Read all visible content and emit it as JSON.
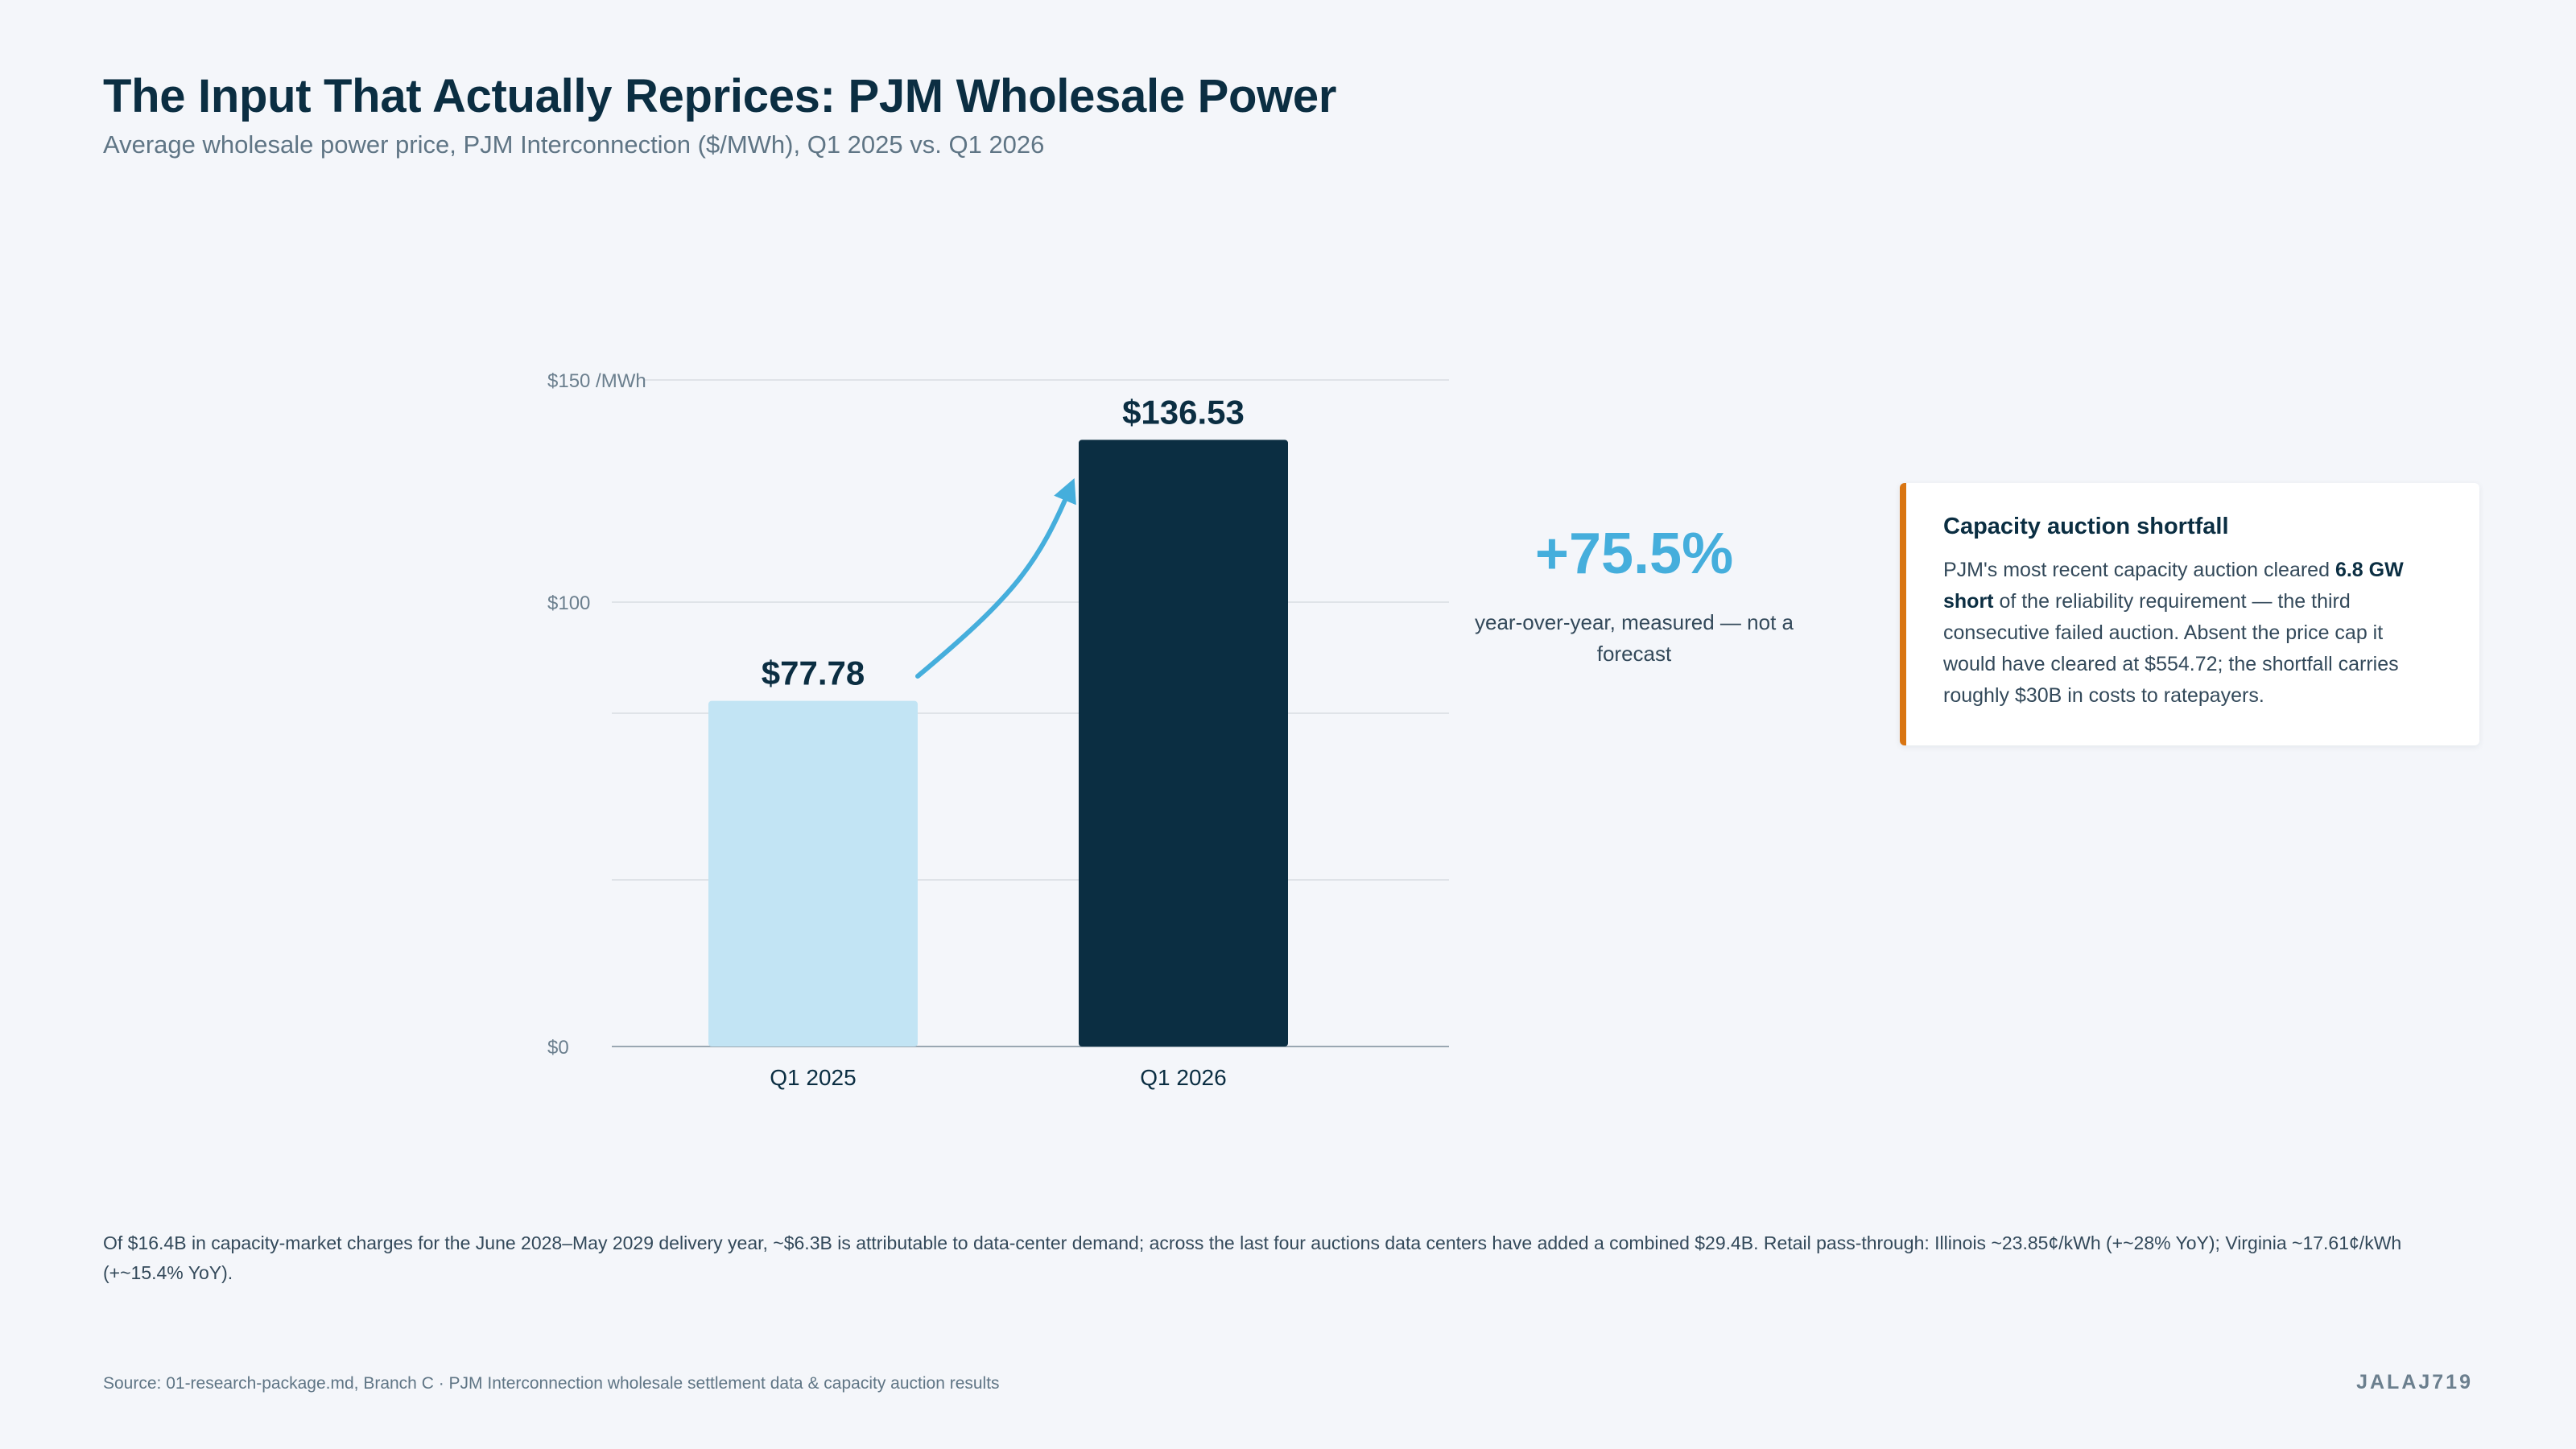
{
  "title": "The Input That Actually Reprices: PJM Wholesale Power",
  "subtitle": "Average wholesale power price, PJM Interconnection ($/MWh), Q1 2025 vs. Q1 2026",
  "colors": {
    "bar_2025": "#c2e4f4",
    "bar_2026": "#0b2e42",
    "arrow": "#45aedc",
    "accent_orange": "#d97512",
    "grid": "#dfe3e8",
    "axis_text": "#6b7f8e"
  },
  "chart_data": {
    "type": "bar",
    "categories": [
      "Q1 2025",
      "Q1 2026"
    ],
    "values": [
      77.78,
      136.53
    ],
    "value_labels": [
      "$77.78",
      "$136.53"
    ],
    "ylim": [
      0,
      150
    ],
    "yticks": [
      {
        "value": 0,
        "label": "$0"
      },
      {
        "value": 100,
        "label": "$100"
      },
      {
        "value": 150,
        "label": "$150 /MWh"
      }
    ],
    "gridlines": [
      37.5,
      75,
      100,
      150
    ],
    "grid": true
  },
  "callout": {
    "value": "+75.5%",
    "label": "year-over-year, measured — not a forecast"
  },
  "card": {
    "title": "Capacity auction shortfall",
    "body_before": "PJM's most recent capacity auction cleared ",
    "body_bold": "6.8 GW short",
    "body_after": " of the reliability requirement — the third consecutive failed auction. Absent the price cap it would have cleared at $554.72; the shortfall carries roughly $30B in costs to ratepayers."
  },
  "footnote": "Of $16.4B in capacity-market charges for the June 2028–May 2029 delivery year, ~$6.3B is attributable to data-center demand; across the last four auctions data centers have added a combined $29.4B. Retail pass-through: Illinois ~23.85¢/kWh (+~28% YoY); Virginia ~17.61¢/kWh (+~15.4% YoY).",
  "source": "Source: 01-research-package.md, Branch C · PJM Interconnection wholesale settlement data & capacity auction results",
  "brand": "JALAJ719"
}
